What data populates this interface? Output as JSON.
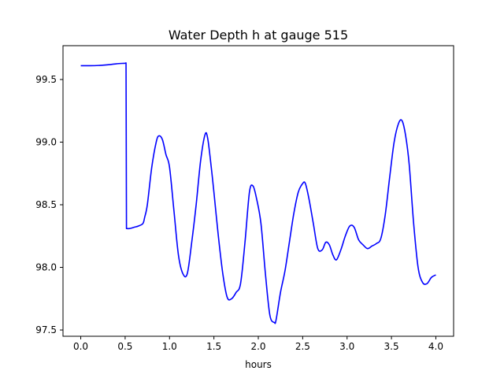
{
  "chart_data": {
    "type": "line",
    "title": "Water Depth h at gauge 515",
    "xlabel": "hours",
    "ylabel": "",
    "xlim": [
      -0.2,
      4.2
    ],
    "ylim": [
      97.45,
      99.77
    ],
    "xticks": [
      0.0,
      0.5,
      1.0,
      1.5,
      2.0,
      2.5,
      3.0,
      3.5,
      4.0
    ],
    "xtick_labels": [
      "0.0",
      "0.5",
      "1.0",
      "1.5",
      "2.0",
      "2.5",
      "3.0",
      "3.5",
      "4.0"
    ],
    "yticks": [
      97.5,
      98.0,
      98.5,
      99.0,
      99.5
    ],
    "ytick_labels": [
      "97.5",
      "98.0",
      "98.5",
      "99.0",
      "99.5"
    ],
    "grid": false,
    "legend": "none",
    "series": [
      {
        "color": "#0000ff",
        "x": [
          0.0,
          0.1,
          0.2,
          0.3,
          0.4,
          0.5,
          0.51,
          0.515,
          0.55,
          0.6,
          0.65,
          0.7,
          0.72,
          0.75,
          0.8,
          0.85,
          0.88,
          0.92,
          0.96,
          1.0,
          1.05,
          1.1,
          1.15,
          1.2,
          1.25,
          1.3,
          1.35,
          1.4,
          1.43,
          1.47,
          1.5,
          1.55,
          1.6,
          1.65,
          1.7,
          1.75,
          1.8,
          1.85,
          1.9,
          1.94,
          1.98,
          2.03,
          2.08,
          2.13,
          2.18,
          2.2,
          2.25,
          2.3,
          2.35,
          2.4,
          2.45,
          2.5,
          2.53,
          2.57,
          2.62,
          2.67,
          2.72,
          2.76,
          2.8,
          2.84,
          2.88,
          2.93,
          2.98,
          3.03,
          3.08,
          3.13,
          3.18,
          3.23,
          3.28,
          3.33,
          3.38,
          3.43,
          3.48,
          3.53,
          3.58,
          3.62,
          3.66,
          3.7,
          3.75,
          3.8,
          3.85,
          3.9,
          3.95,
          4.0
        ],
        "y": [
          99.61,
          99.61,
          99.612,
          99.617,
          99.625,
          99.63,
          99.632,
          98.31,
          98.31,
          98.32,
          98.33,
          98.35,
          98.4,
          98.5,
          98.8,
          99.0,
          99.05,
          99.02,
          98.9,
          98.8,
          98.45,
          98.1,
          97.95,
          97.95,
          98.2,
          98.5,
          98.85,
          99.06,
          99.03,
          98.8,
          98.6,
          98.25,
          97.95,
          97.76,
          97.75,
          97.8,
          97.87,
          98.2,
          98.6,
          98.65,
          98.55,
          98.35,
          97.95,
          97.62,
          97.56,
          97.58,
          97.8,
          97.97,
          98.2,
          98.43,
          98.6,
          98.67,
          98.67,
          98.55,
          98.35,
          98.15,
          98.14,
          98.2,
          98.18,
          98.1,
          98.06,
          98.14,
          98.25,
          98.33,
          98.32,
          98.22,
          98.18,
          98.15,
          98.17,
          98.19,
          98.23,
          98.42,
          98.72,
          99.0,
          99.15,
          99.17,
          99.05,
          98.82,
          98.35,
          98.0,
          97.88,
          97.87,
          97.92,
          97.94
        ]
      }
    ]
  }
}
